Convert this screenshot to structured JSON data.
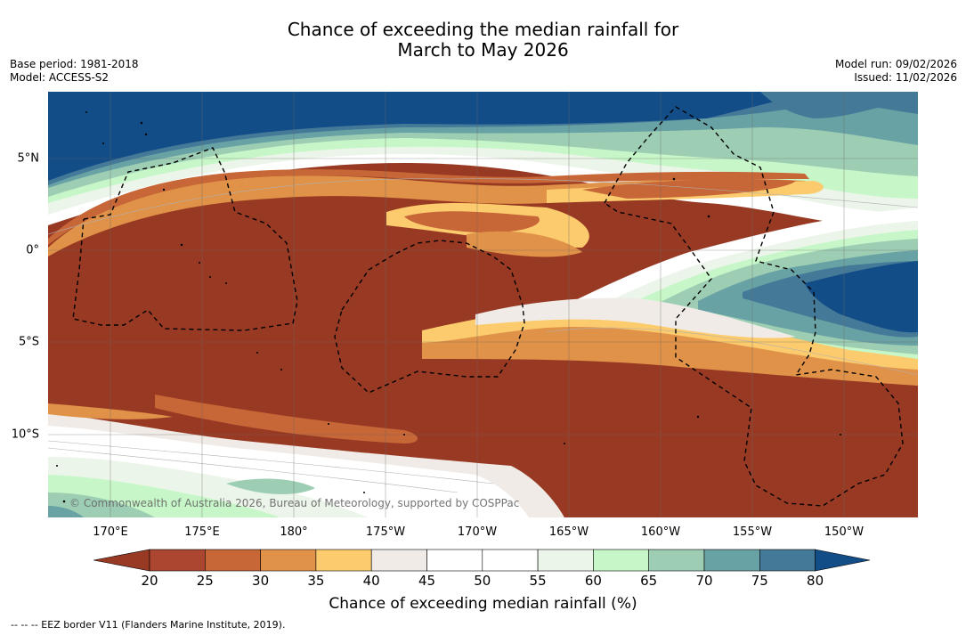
{
  "title": {
    "line1": "Chance of exceeding the median rainfall for",
    "line2": "March to May 2026"
  },
  "meta": {
    "base_period": "Base period: 1981-2018",
    "model": "Model: ACCESS-S2",
    "model_run": "Model run: 09/02/2026",
    "issued": "Issued: 11/02/2026"
  },
  "map": {
    "lon_labels": [
      "170°E",
      "175°E",
      "180°",
      "175°W",
      "170°W",
      "165°W",
      "160°W",
      "155°W",
      "150°W"
    ],
    "lat_labels": [
      "5°N",
      "0°",
      "5°S",
      "10°S"
    ],
    "copyright": "© Commonwealth of Australia 2026, Bureau of Meteorology, supported by COSPPac"
  },
  "colorbar": {
    "ticks": [
      "20",
      "25",
      "30",
      "35",
      "40",
      "45",
      "50",
      "55",
      "60",
      "65",
      "70",
      "75",
      "80"
    ],
    "label": "Chance of exceeding median rainfall (%)",
    "colors": {
      "under": "#983a23",
      "c20_25": "#ad4630",
      "c25_30": "#c76637",
      "c30_35": "#e09248",
      "c35_40": "#fccb6d",
      "c40_45": "#f0ebe6",
      "c45_50": "#ffffff",
      "c50_55": "#ffffff",
      "c55_60": "#ecf5e9",
      "c60_65": "#c7f7c8",
      "c65_70": "#9dceb4",
      "c70_75": "#69a2a4",
      "c75_80": "#447a98",
      "over": "#134d88"
    }
  },
  "legend": {
    "text": "-- -- -- EEZ border V11 (Flanders Marine Institute, 2019)."
  }
}
